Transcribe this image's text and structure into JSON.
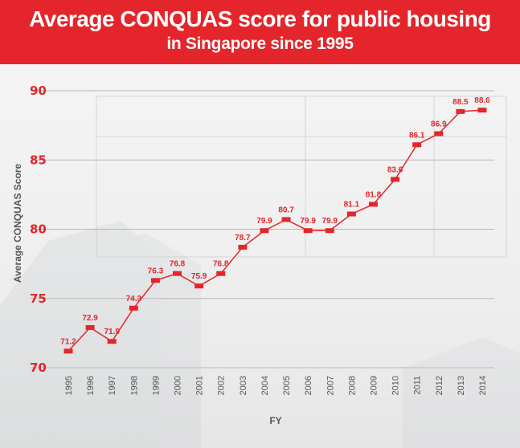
{
  "header": {
    "title_line1": "Average CONQUAS score for public housing",
    "title_line2": "in Singapore since 1995"
  },
  "colors": {
    "accent": "#e4252b",
    "gridline": "#b8b8b8",
    "text": "#555555"
  },
  "chart_data": {
    "type": "line",
    "title": "Average CONQUAS score for public housing in Singapore since 1995",
    "xlabel": "FY",
    "ylabel": "Average CONQUAS Score",
    "ylim": [
      70,
      90
    ],
    "yticks": [
      "70",
      "75",
      "80",
      "85",
      "90"
    ],
    "grid": true,
    "categories": [
      "1995",
      "1996",
      "1997",
      "1998",
      "1999",
      "2000",
      "2001",
      "2002",
      "2003",
      "2004",
      "2005",
      "2006",
      "2007",
      "2008",
      "2009",
      "2010",
      "2011",
      "2012",
      "2013",
      "2014"
    ],
    "values": [
      71.2,
      72.9,
      71.9,
      74.3,
      76.3,
      76.8,
      75.9,
      76.8,
      78.7,
      79.9,
      80.7,
      79.9,
      79.9,
      81.1,
      81.8,
      83.6,
      86.1,
      86.9,
      88.5,
      88.6
    ],
    "labels": [
      "71.2",
      "72.9",
      "71.9",
      "74.3",
      "76.3",
      "76.8",
      "75.9",
      "76.8",
      "78.7",
      "79.9",
      "80.7",
      "79.9",
      "79.9",
      "81.1",
      "81.8",
      "83.6",
      "86.1",
      "86.9",
      "88.5",
      "88.6"
    ]
  }
}
